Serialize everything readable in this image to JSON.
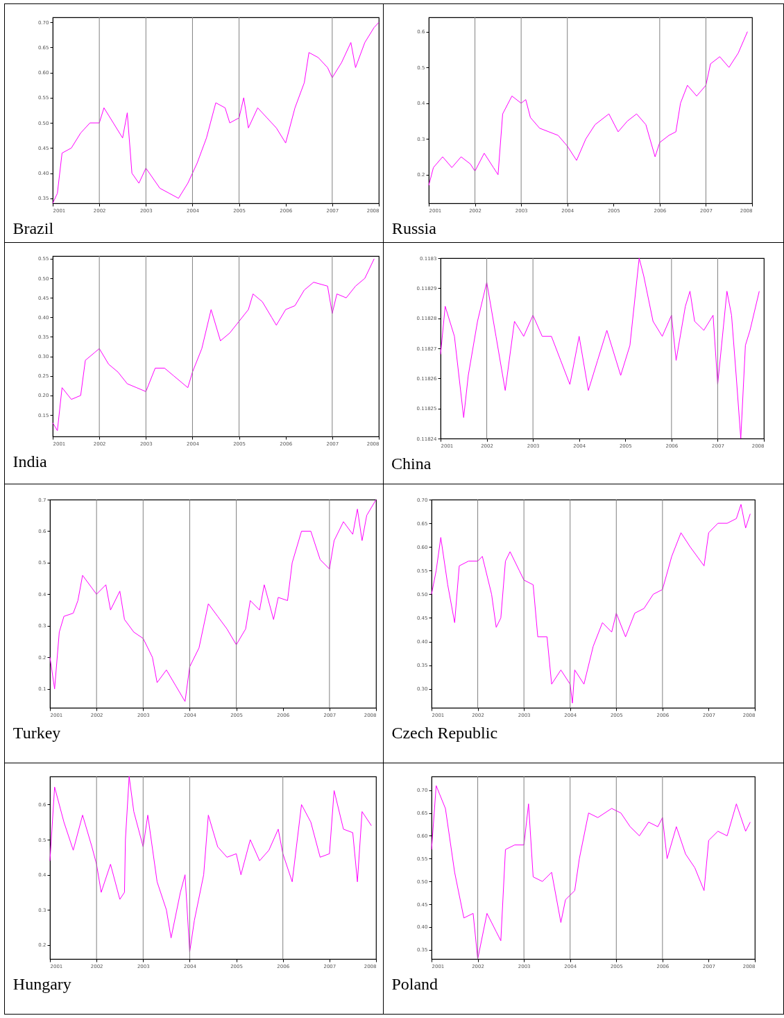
{
  "chart_data": [
    {
      "type": "line",
      "title": "Brazil",
      "color": "#ff00ff",
      "xlim": [
        2001,
        2008
      ],
      "xticks": [
        2001,
        2002,
        2003,
        2004,
        2005,
        2006,
        2007,
        2008
      ],
      "ylim": [
        0.34,
        0.71
      ],
      "yticks": [
        0.35,
        {
          "value": 0.4,
          "label": "0.40"
        },
        0.45,
        {
          "value": 0.5,
          "label": "0.50"
        },
        0.55,
        {
          "value": 0.6,
          "label": "0.60"
        },
        0.65,
        {
          "value": 0.7,
          "label": "0.70"
        }
      ],
      "x": [
        2001,
        2001.1,
        2001.2,
        2001.4,
        2001.6,
        2001.8,
        2002,
        2002.1,
        2002.3,
        2002.5,
        2002.6,
        2002.7,
        2002.85,
        2003,
        2003.3,
        2003.5,
        2003.7,
        2003.9,
        2004.1,
        2004.3,
        2004.5,
        2004.7,
        2004.8,
        2005,
        2005.1,
        2005.2,
        2005.4,
        2005.6,
        2005.8,
        2006,
        2006.2,
        2006.4,
        2006.5,
        2006.7,
        2006.9,
        2007,
        2007.2,
        2007.4,
        2007.5,
        2007.7,
        2007.9,
        2008
      ],
      "values": [
        0.34,
        0.36,
        0.44,
        0.45,
        0.48,
        0.5,
        0.5,
        0.53,
        0.5,
        0.47,
        0.52,
        0.4,
        0.38,
        0.41,
        0.37,
        0.36,
        0.35,
        0.38,
        0.42,
        0.47,
        0.54,
        0.53,
        0.5,
        0.51,
        0.55,
        0.49,
        0.53,
        0.51,
        0.49,
        0.46,
        0.53,
        0.58,
        0.64,
        0.63,
        0.61,
        0.59,
        0.62,
        0.66,
        0.61,
        0.66,
        0.69,
        0.7
      ],
      "ref_lines": [
        {
          "axis": "x",
          "value": 2002,
          "color": "#808080"
        },
        {
          "axis": "x",
          "value": 2003,
          "color": "#808080"
        },
        {
          "axis": "x",
          "value": 2004,
          "color": "#808080"
        },
        {
          "axis": "x",
          "value": 2005,
          "color": "#808080"
        },
        {
          "axis": "x",
          "value": 2007,
          "color": "#808080"
        }
      ]
    },
    {
      "type": "line",
      "title": "Russia",
      "color": "#ff00ff",
      "xlim": [
        2001,
        2008
      ],
      "xticks": [
        2001,
        2002,
        2003,
        2004,
        2005,
        2006,
        2007,
        2008
      ],
      "ylim": [
        0.12,
        0.64
      ],
      "yticks": [
        0.2,
        0.3,
        0.4,
        0.5,
        0.6
      ],
      "x": [
        2001,
        2001.1,
        2001.3,
        2001.5,
        2001.7,
        2001.9,
        2002,
        2002.2,
        2002.4,
        2002.5,
        2002.6,
        2002.8,
        2003,
        2003.1,
        2003.2,
        2003.4,
        2003.6,
        2003.8,
        2004,
        2004.2,
        2004.4,
        2004.6,
        2004.9,
        2005.1,
        2005.3,
        2005.5,
        2005.7,
        2005.9,
        2006,
        2006.2,
        2006.35,
        2006.45,
        2006.6,
        2006.8,
        2007,
        2007.1,
        2007.3,
        2007.5,
        2007.7,
        2007.9
      ],
      "values": [
        0.17,
        0.22,
        0.25,
        0.22,
        0.25,
        0.23,
        0.21,
        0.26,
        0.22,
        0.2,
        0.37,
        0.42,
        0.4,
        0.41,
        0.36,
        0.33,
        0.32,
        0.31,
        0.28,
        0.24,
        0.3,
        0.34,
        0.37,
        0.32,
        0.35,
        0.37,
        0.34,
        0.25,
        0.29,
        0.31,
        0.32,
        0.4,
        0.45,
        0.42,
        0.45,
        0.51,
        0.53,
        0.5,
        0.54,
        0.6
      ],
      "ref_lines": [
        {
          "axis": "x",
          "value": 2002,
          "color": "#808080"
        },
        {
          "axis": "x",
          "value": 2003,
          "color": "#808080"
        },
        {
          "axis": "x",
          "value": 2004,
          "color": "#808080"
        },
        {
          "axis": "x",
          "value": 2006,
          "color": "#808080"
        },
        {
          "axis": "x",
          "value": 2007,
          "color": "#808080"
        }
      ]
    },
    {
      "type": "line",
      "title": "India",
      "color": "#ff00ff",
      "xlim": [
        2001,
        2008
      ],
      "xticks": [
        2001,
        2002,
        2003,
        2004,
        2005,
        2006,
        2007,
        2008
      ],
      "ylim": [
        0.095,
        0.557
      ],
      "yticks": [
        0.15,
        {
          "value": 0.2,
          "label": "0.20"
        },
        0.25,
        {
          "value": 0.3,
          "label": "0.30"
        },
        0.35,
        {
          "value": 0.4,
          "label": "0.40"
        },
        0.45,
        {
          "value": 0.5,
          "label": "0.50"
        },
        0.55
      ],
      "x": [
        2001,
        2001.1,
        2001.2,
        2001.4,
        2001.6,
        2001.7,
        2001.9,
        2002,
        2002.2,
        2002.4,
        2002.6,
        2002.8,
        2003,
        2003.2,
        2003.4,
        2003.6,
        2003.9,
        2004,
        2004.2,
        2004.4,
        2004.6,
        2004.8,
        2005,
        2005.2,
        2005.3,
        2005.5,
        2005.7,
        2005.8,
        2006,
        2006.2,
        2006.4,
        2006.6,
        2006.9,
        2007,
        2007.1,
        2007.3,
        2007.5,
        2007.7,
        2007.9
      ],
      "values": [
        0.13,
        0.11,
        0.22,
        0.19,
        0.2,
        0.29,
        0.31,
        0.32,
        0.28,
        0.26,
        0.23,
        0.22,
        0.21,
        0.27,
        0.27,
        0.25,
        0.22,
        0.26,
        0.32,
        0.42,
        0.34,
        0.36,
        0.39,
        0.42,
        0.46,
        0.44,
        0.4,
        0.38,
        0.42,
        0.43,
        0.47,
        0.49,
        0.48,
        0.41,
        0.46,
        0.45,
        0.48,
        0.5,
        0.55
      ],
      "ref_lines": [
        {
          "axis": "x",
          "value": 2002,
          "color": "#808080"
        },
        {
          "axis": "x",
          "value": 2003,
          "color": "#808080"
        },
        {
          "axis": "x",
          "value": 2004,
          "color": "#808080"
        },
        {
          "axis": "x",
          "value": 2005,
          "color": "#808080"
        },
        {
          "axis": "x",
          "value": 2007,
          "color": "#808080"
        }
      ]
    },
    {
      "type": "line",
      "title": "China",
      "color": "#ff00ff",
      "xlim": [
        2001,
        2008
      ],
      "xticks": [
        2001,
        2002,
        2003,
        2004,
        2005,
        2006,
        2007,
        2008
      ],
      "ylim": [
        0.11824,
        0.1183
      ],
      "yticks": [
        0.11824,
        0.11825,
        0.11826,
        0.11827,
        0.11828,
        0.11829,
        0.1183
      ],
      "x": [
        2001,
        2001.1,
        2001.3,
        2001.5,
        2001.6,
        2001.8,
        2002,
        2002.2,
        2002.4,
        2002.6,
        2002.8,
        2003,
        2003.2,
        2003.4,
        2003.6,
        2003.8,
        2004,
        2004.2,
        2004.4,
        2004.6,
        2004.9,
        2005.1,
        2005.3,
        2005.4,
        2005.6,
        2005.8,
        2006,
        2006.1,
        2006.3,
        2006.4,
        2006.5,
        2006.7,
        2006.9,
        2007,
        2007.2,
        2007.3,
        2007.4,
        2007.5,
        2007.6,
        2007.7,
        2007.9
      ],
      "values": [
        0.118268,
        0.118284,
        0.118274,
        0.118247,
        0.118261,
        0.118279,
        0.118292,
        0.118274,
        0.118256,
        0.118279,
        0.118274,
        0.118281,
        0.118274,
        0.118274,
        0.118266,
        0.118258,
        0.118274,
        0.118256,
        0.118266,
        0.118276,
        0.118261,
        0.118271,
        0.1183,
        0.118294,
        0.118279,
        0.118274,
        0.118281,
        0.118266,
        0.118284,
        0.118289,
        0.118279,
        0.118276,
        0.118281,
        0.118258,
        0.118289,
        0.118281,
        0.118261,
        0.11824,
        0.118271,
        0.118276,
        0.118289
      ],
      "ref_lines": [
        {
          "axis": "x",
          "value": 2002,
          "color": "#808080"
        },
        {
          "axis": "x",
          "value": 2003,
          "color": "#808080"
        },
        {
          "axis": "x",
          "value": 2006,
          "color": "#808080"
        },
        {
          "axis": "x",
          "value": 2007,
          "color": "#808080"
        }
      ]
    },
    {
      "type": "line",
      "title": "Turkey",
      "color": "#ff00ff",
      "xlim": [
        2001,
        2008
      ],
      "xticks": [
        2001,
        2002,
        2003,
        2004,
        2005,
        2006,
        2007,
        2008
      ],
      "ylim": [
        0.04,
        0.7
      ],
      "yticks": [
        0.1,
        0.2,
        0.3,
        0.4,
        0.5,
        0.6,
        0.7
      ],
      "x": [
        2001,
        2001.1,
        2001.2,
        2001.3,
        2001.5,
        2001.6,
        2001.7,
        2001.9,
        2002,
        2002.2,
        2002.3,
        2002.5,
        2002.6,
        2002.8,
        2003,
        2003.2,
        2003.3,
        2003.5,
        2003.7,
        2003.9,
        2004,
        2004.2,
        2004.4,
        2004.6,
        2004.8,
        2005,
        2005.2,
        2005.3,
        2005.5,
        2005.6,
        2005.8,
        2005.9,
        2006.1,
        2006.2,
        2006.4,
        2006.6,
        2006.8,
        2007,
        2007.1,
        2007.3,
        2007.5,
        2007.6,
        2007.7,
        2007.8,
        2008
      ],
      "values": [
        0.2,
        0.1,
        0.28,
        0.33,
        0.34,
        0.38,
        0.46,
        0.42,
        0.4,
        0.43,
        0.35,
        0.41,
        0.32,
        0.28,
        0.26,
        0.2,
        0.12,
        0.16,
        0.11,
        0.06,
        0.17,
        0.23,
        0.37,
        0.33,
        0.29,
        0.24,
        0.29,
        0.38,
        0.35,
        0.43,
        0.32,
        0.39,
        0.38,
        0.5,
        0.6,
        0.6,
        0.51,
        0.48,
        0.57,
        0.63,
        0.59,
        0.67,
        0.57,
        0.65,
        0.7
      ],
      "ref_lines": [
        {
          "axis": "x",
          "value": 2002,
          "color": "#808080"
        },
        {
          "axis": "x",
          "value": 2003,
          "color": "#808080"
        },
        {
          "axis": "x",
          "value": 2004,
          "color": "#808080"
        },
        {
          "axis": "x",
          "value": 2005,
          "color": "#808080"
        },
        {
          "axis": "x",
          "value": 2007,
          "color": "#808080"
        }
      ]
    },
    {
      "type": "line",
      "title": "Czech Republic",
      "color": "#ff00ff",
      "xlim": [
        2001,
        2008
      ],
      "xticks": [
        2001,
        2002,
        2003,
        2004,
        2005,
        2006,
        2007,
        2008
      ],
      "ylim": [
        0.26,
        0.7
      ],
      "yticks": [
        {
          "value": 0.3,
          "label": "0.30"
        },
        0.35,
        {
          "value": 0.4,
          "label": "0.40"
        },
        0.45,
        {
          "value": 0.5,
          "label": "0.50"
        },
        0.55,
        {
          "value": 0.6,
          "label": "0.60"
        },
        0.65,
        {
          "value": 0.7,
          "label": "0.70"
        }
      ],
      "x": [
        2001,
        2001.1,
        2001.2,
        2001.35,
        2001.5,
        2001.6,
        2001.8,
        2002,
        2002.1,
        2002.3,
        2002.4,
        2002.5,
        2002.6,
        2002.7,
        2002.9,
        2003,
        2003.2,
        2003.3,
        2003.5,
        2003.6,
        2003.8,
        2004,
        2004.05,
        2004.1,
        2004.3,
        2004.5,
        2004.7,
        2004.9,
        2005,
        2005.2,
        2005.4,
        2005.6,
        2005.8,
        2006,
        2006.2,
        2006.4,
        2006.6,
        2006.9,
        2007,
        2007.2,
        2007.4,
        2007.6,
        2007.7,
        2007.8,
        2007.9
      ],
      "values": [
        0.5,
        0.55,
        0.62,
        0.52,
        0.44,
        0.56,
        0.57,
        0.57,
        0.58,
        0.5,
        0.43,
        0.45,
        0.57,
        0.59,
        0.55,
        0.53,
        0.52,
        0.41,
        0.41,
        0.31,
        0.34,
        0.31,
        0.27,
        0.34,
        0.31,
        0.39,
        0.44,
        0.42,
        0.46,
        0.41,
        0.46,
        0.47,
        0.5,
        0.51,
        0.58,
        0.63,
        0.6,
        0.56,
        0.63,
        0.65,
        0.65,
        0.66,
        0.69,
        0.64,
        0.67
      ],
      "ref_lines": [
        {
          "axis": "x",
          "value": 2002,
          "color": "#808080"
        },
        {
          "axis": "x",
          "value": 2003,
          "color": "#808080"
        },
        {
          "axis": "x",
          "value": 2004,
          "color": "#808080"
        },
        {
          "axis": "x",
          "value": 2005,
          "color": "#808080"
        },
        {
          "axis": "x",
          "value": 2006,
          "color": "#808080"
        }
      ]
    },
    {
      "type": "line",
      "title": "Hungary",
      "color": "#ff00ff",
      "xlim": [
        2001,
        2008
      ],
      "xticks": [
        2001,
        2002,
        2003,
        2004,
        2005,
        2006,
        2007,
        2008
      ],
      "ylim": [
        0.16,
        0.68
      ],
      "yticks": [
        0.2,
        0.3,
        0.4,
        0.5,
        0.6
      ],
      "x": [
        2001,
        2001.1,
        2001.3,
        2001.5,
        2001.7,
        2001.9,
        2002,
        2002.1,
        2002.3,
        2002.5,
        2002.6,
        2002.62,
        2002.7,
        2002.8,
        2003,
        2003.1,
        2003.3,
        2003.5,
        2003.6,
        2003.8,
        2003.9,
        2004,
        2004.1,
        2004.3,
        2004.4,
        2004.6,
        2004.8,
        2005,
        2005.1,
        2005.3,
        2005.5,
        2005.7,
        2005.9,
        2006,
        2006.2,
        2006.4,
        2006.6,
        2006.8,
        2007,
        2007.1,
        2007.3,
        2007.5,
        2007.6,
        2007.7,
        2007.9
      ],
      "values": [
        0.44,
        0.65,
        0.55,
        0.47,
        0.57,
        0.48,
        0.43,
        0.35,
        0.43,
        0.33,
        0.35,
        0.5,
        0.68,
        0.58,
        0.48,
        0.57,
        0.38,
        0.3,
        0.22,
        0.35,
        0.4,
        0.18,
        0.27,
        0.4,
        0.57,
        0.48,
        0.45,
        0.46,
        0.4,
        0.5,
        0.44,
        0.47,
        0.53,
        0.46,
        0.38,
        0.6,
        0.55,
        0.45,
        0.46,
        0.64,
        0.53,
        0.52,
        0.38,
        0.58,
        0.54
      ],
      "ref_lines": [
        {
          "axis": "x",
          "value": 2002,
          "color": "#808080"
        },
        {
          "axis": "x",
          "value": 2003,
          "color": "#808080"
        },
        {
          "axis": "x",
          "value": 2004,
          "color": "#808080"
        },
        {
          "axis": "x",
          "value": 2006,
          "color": "#808080"
        }
      ]
    },
    {
      "type": "line",
      "title": "Poland",
      "color": "#ff00ff",
      "xlim": [
        2001,
        2008
      ],
      "xticks": [
        2001,
        2002,
        2003,
        2004,
        2005,
        2006,
        2007,
        2008
      ],
      "ylim": [
        0.33,
        0.73
      ],
      "yticks": [
        0.35,
        {
          "value": 0.4,
          "label": "0.40"
        },
        0.45,
        {
          "value": 0.5,
          "label": "0.50"
        },
        0.55,
        {
          "value": 0.6,
          "label": "0.60"
        },
        0.65,
        {
          "value": 0.7,
          "label": "0.70"
        }
      ],
      "x": [
        2001,
        2001.1,
        2001.3,
        2001.5,
        2001.7,
        2001.9,
        2002,
        2002.2,
        2002.4,
        2002.5,
        2002.6,
        2002.8,
        2003,
        2003.1,
        2003.2,
        2003.4,
        2003.6,
        2003.8,
        2003.9,
        2004.1,
        2004.2,
        2004.4,
        2004.6,
        2004.9,
        2005.1,
        2005.3,
        2005.5,
        2005.7,
        2005.9,
        2006,
        2006.1,
        2006.3,
        2006.5,
        2006.7,
        2006.9,
        2007,
        2007.2,
        2007.4,
        2007.6,
        2007.8,
        2007.9
      ],
      "values": [
        0.57,
        0.71,
        0.66,
        0.52,
        0.42,
        0.43,
        0.33,
        0.43,
        0.39,
        0.37,
        0.57,
        0.58,
        0.58,
        0.67,
        0.51,
        0.5,
        0.52,
        0.41,
        0.46,
        0.48,
        0.55,
        0.65,
        0.64,
        0.66,
        0.65,
        0.62,
        0.6,
        0.63,
        0.62,
        0.64,
        0.55,
        0.62,
        0.56,
        0.53,
        0.48,
        0.59,
        0.61,
        0.6,
        0.67,
        0.61,
        0.63
      ],
      "ref_lines": [
        {
          "axis": "x",
          "value": 2002,
          "color": "#808080"
        },
        {
          "axis": "x",
          "value": 2003,
          "color": "#808080"
        },
        {
          "axis": "x",
          "value": 2004,
          "color": "#808080"
        },
        {
          "axis": "x",
          "value": 2005,
          "color": "#808080"
        },
        {
          "axis": "x",
          "value": 2006,
          "color": "#808080"
        }
      ]
    }
  ]
}
